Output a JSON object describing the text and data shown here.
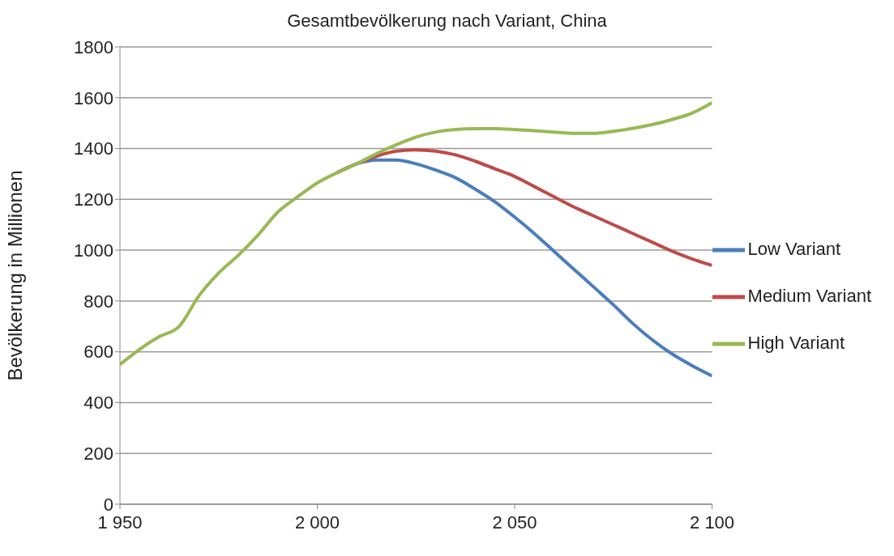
{
  "chart_data": {
    "type": "line",
    "title": "Gesamtbevölkerung nach Variant, China",
    "ylabel": "Bevölkerung in Millionen",
    "x": [
      1950,
      1955,
      1960,
      1965,
      1970,
      1975,
      1980,
      1985,
      1990,
      1995,
      2000,
      2005,
      2010,
      2015,
      2020,
      2025,
      2030,
      2035,
      2040,
      2045,
      2050,
      2055,
      2060,
      2065,
      2070,
      2075,
      2080,
      2085,
      2090,
      2095,
      2100
    ],
    "series": [
      {
        "name": "Low Variant",
        "color": "#4a7ebb",
        "values": [
          null,
          null,
          null,
          null,
          null,
          null,
          null,
          null,
          null,
          null,
          null,
          1305,
          1340,
          1355,
          1355,
          1340,
          1315,
          1285,
          1240,
          1190,
          1130,
          1065,
          995,
          925,
          855,
          785,
          710,
          645,
          590,
          545,
          505
        ]
      },
      {
        "name": "Medium Variant",
        "color": "#be4b48",
        "values": [
          null,
          null,
          null,
          null,
          null,
          null,
          null,
          null,
          null,
          null,
          null,
          1305,
          1340,
          1370,
          1390,
          1395,
          1390,
          1375,
          1350,
          1320,
          1290,
          1250,
          1210,
          1170,
          1135,
          1100,
          1065,
          1030,
          995,
          965,
          940
        ]
      },
      {
        "name": "High Variant",
        "color": "#98b954",
        "values": [
          550,
          610,
          660,
          700,
          820,
          910,
          980,
          1060,
          1150,
          1210,
          1265,
          1305,
          1340,
          1380,
          1415,
          1445,
          1465,
          1475,
          1478,
          1478,
          1475,
          1470,
          1465,
          1460,
          1460,
          1468,
          1480,
          1495,
          1515,
          1540,
          1580
        ]
      }
    ],
    "xlim": [
      1950,
      2100
    ],
    "xticks": [
      {
        "value": 1950,
        "label": "1 950"
      },
      {
        "value": 2000,
        "label": "2 000"
      },
      {
        "value": 2050,
        "label": "2 050"
      },
      {
        "value": 2100,
        "label": "2 100"
      }
    ],
    "ylim": [
      0,
      1800
    ],
    "yticks": [
      0,
      200,
      400,
      600,
      800,
      1000,
      1200,
      1400,
      1600,
      1800
    ],
    "grid": "y",
    "legend": "right",
    "marker": "none",
    "line_style": "solid"
  }
}
